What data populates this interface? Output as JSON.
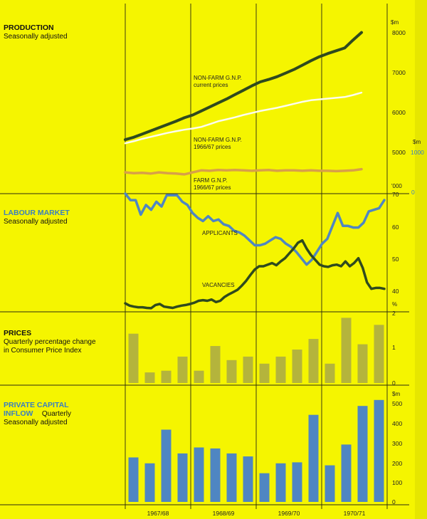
{
  "colors": {
    "background": "#f5f500",
    "frame": "#2a2a10",
    "dark_series": "#2f4a1e",
    "white_series": "#fcfcf0",
    "farm_series": "#d8a048",
    "blue_series": "#4f86c2",
    "prices_bar": "#b4b43c",
    "capital_bar": "#4f86c2",
    "label_blue": "#3a7fc0"
  },
  "years": [
    "1967/68",
    "1968/69",
    "1969/70",
    "1970/71"
  ],
  "panels": {
    "production": {
      "title": "PRODUCTION",
      "subtitle": "Seasonally adjusted",
      "unit_left": "$m",
      "unit_right": "$m",
      "unit_right2": "1000",
      "ticks": [
        "8000",
        "7000",
        "6000",
        "5000"
      ],
      "labels": {
        "nonfarm_current_1": "NON-FARM G.N.P.",
        "nonfarm_current_2": "current prices",
        "nonfarm_constant_1": "NON-FARM G.N.P.",
        "nonfarm_constant_2": "1966/67 prices",
        "farm_1": "FARM G.N.P.",
        "farm_2": "1966/67 prices"
      }
    },
    "labour": {
      "title": "LABOUR MARKET",
      "subtitle": "Seasonally adjusted",
      "unit": "'000",
      "farm_tick": "0",
      "ticks": [
        "70",
        "60",
        "50",
        "40"
      ],
      "labels": {
        "applicants": "APPLICANTS",
        "vacancies": "VACANCIES"
      }
    },
    "prices": {
      "title": "PRICES",
      "subtitle1": "Quarterly percentage change",
      "subtitle2": "in Consumer Price Index",
      "unit": "%",
      "ticks": [
        "2",
        "1",
        "0"
      ]
    },
    "capital": {
      "title1": "PRIVATE CAPITAL",
      "title2": "INFLOW",
      "title_suffix": "Quarterly",
      "subtitle": "Seasonally adjusted",
      "unit": "$m",
      "ticks": [
        "500",
        "400",
        "300",
        "200",
        "100",
        "0"
      ]
    }
  },
  "chart_data": [
    {
      "type": "line",
      "title": "PRODUCTION",
      "subtitle": "Seasonally adjusted",
      "ylabel": "$m",
      "ylim": [
        4450,
        8050
      ],
      "series": [
        {
          "name": "NON-FARM G.N.P. current prices",
          "values": [
            5300,
            5360,
            5440,
            5520,
            5600,
            5680,
            5760,
            5850,
            5920,
            6020,
            6120,
            6220,
            6320,
            6430,
            6540,
            6650,
            6750,
            6810,
            6880,
            6970,
            7060,
            7170,
            7280,
            7380,
            7460,
            7530,
            7600,
            7800,
            7990
          ]
        },
        {
          "name": "NON-FARM G.N.P. 1966/67 prices",
          "values": [
            5210,
            5260,
            5320,
            5370,
            5420,
            5470,
            5510,
            5550,
            5580,
            5620,
            5690,
            5760,
            5810,
            5860,
            5920,
            5970,
            6020,
            6060,
            6100,
            6150,
            6200,
            6250,
            6290,
            6310,
            6330,
            6350,
            6370,
            6420,
            6480
          ]
        },
        {
          "name": "FARM G.N.P. 1966/67 prices",
          "values": [
            4480,
            4460,
            4470,
            4450,
            4480,
            4460,
            4450,
            4430,
            4480,
            4530,
            4520,
            4540,
            4530,
            4540,
            4530,
            4520,
            4530,
            4540,
            4520,
            4530,
            4530,
            4520,
            4530,
            4520,
            4520,
            4510,
            4520,
            4530,
            4560
          ]
        }
      ]
    },
    {
      "type": "line",
      "title": "LABOUR MARKET",
      "subtitle": "Seasonally adjusted",
      "ylabel": "'000",
      "ylim": [
        32,
        72
      ],
      "series": [
        {
          "name": "APPLICANTS",
          "values": [
            70,
            68,
            68,
            63.5,
            66.5,
            65,
            67.5,
            66,
            69.5,
            69.5,
            69.5,
            67.5,
            66.5,
            64,
            62.5,
            61.5,
            63,
            61.5,
            62,
            60.5,
            60,
            58.5,
            58,
            57,
            55.5,
            54,
            54,
            54.5,
            55.5,
            56.5,
            56,
            54.5,
            53.5,
            52,
            50,
            48,
            49.5,
            52,
            54.5,
            56,
            60,
            64,
            60,
            60,
            59.5,
            59.5,
            61,
            64.5,
            65,
            65.5,
            68
          ]
        },
        {
          "name": "VACANCIES",
          "values": [
            36,
            35.3,
            35,
            34.8,
            34.8,
            34.6,
            34.5,
            35.5,
            35.8,
            35,
            34.8,
            34.6,
            35,
            35.3,
            35.5,
            35.8,
            36.2,
            36.8,
            37,
            36.8,
            37.2,
            36.4,
            36.8,
            38,
            38.8,
            39.5,
            40.2,
            41.5,
            43,
            44.8,
            46.5,
            47.5,
            47.5,
            48,
            48.5,
            47.8,
            49,
            50,
            51.5,
            53,
            54.8,
            55.5,
            53,
            51,
            49.5,
            48,
            47.5,
            47.3,
            47.8,
            48,
            47.5,
            49,
            47.5,
            48.5,
            50,
            47,
            42.5,
            40.5,
            40.8,
            40.8,
            40.5
          ]
        }
      ]
    },
    {
      "type": "bar",
      "title": "PRICES",
      "subtitle": "Quarterly percentage change in Consumer Price Index",
      "ylabel": "%",
      "ylim": [
        0,
        2
      ],
      "categories": [
        "1967/68 Q1",
        "1967/68 Q2",
        "1967/68 Q3",
        "1967/68 Q4",
        "1968/69 Q1",
        "1968/69 Q2",
        "1968/69 Q3",
        "1968/69 Q4",
        "1969/70 Q1",
        "1969/70 Q2",
        "1969/70 Q3",
        "1969/70 Q4",
        "1970/71 Q1",
        "1970/71 Q2",
        "1970/71 Q3",
        "1970/71 Q4"
      ],
      "values": [
        1.4,
        0.3,
        0.35,
        0.75,
        0.35,
        1.05,
        0.65,
        0.75,
        0.55,
        0.75,
        0.95,
        1.25,
        0.55,
        1.85,
        1.1,
        1.65
      ]
    },
    {
      "type": "bar",
      "title": "PRIVATE CAPITAL INFLOW",
      "subtitle": "Quarterly Seasonally adjusted",
      "ylabel": "$m",
      "ylim": [
        0,
        520
      ],
      "categories": [
        "1967/68 Q1",
        "1967/68 Q2",
        "1967/68 Q3",
        "1967/68 Q4",
        "1968/69 Q1",
        "1968/69 Q2",
        "1968/69 Q3",
        "1968/69 Q4",
        "1969/70 Q1",
        "1969/70 Q2",
        "1969/70 Q3",
        "1969/70 Q4",
        "1970/71 Q1",
        "1970/71 Q2",
        "1970/71 Q3",
        "1970/71 Q4"
      ],
      "values": [
        225,
        195,
        365,
        245,
        275,
        270,
        245,
        230,
        145,
        195,
        200,
        440,
        185,
        290,
        485,
        515
      ]
    }
  ]
}
